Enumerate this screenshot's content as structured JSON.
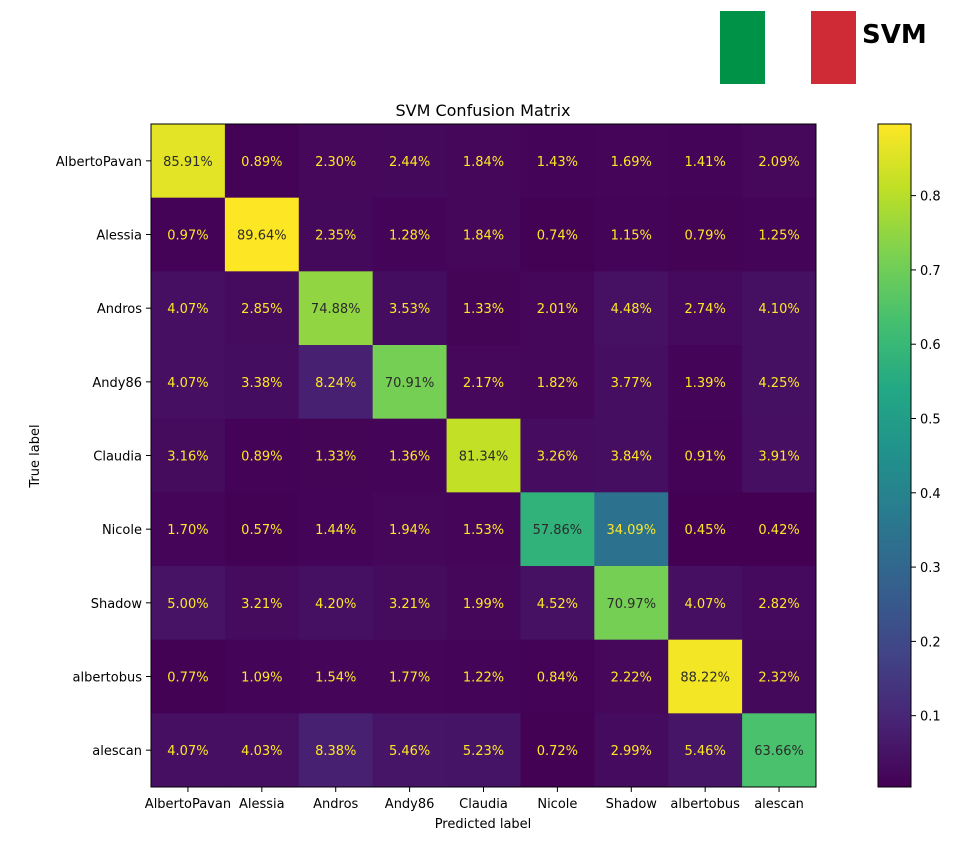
{
  "logo": {
    "text": "SVM",
    "colors": [
      "#009246",
      "#ffffff",
      "#ce2b37"
    ]
  },
  "chart_data": {
    "type": "heatmap",
    "title": "SVM Confusion Matrix",
    "xlabel": "Predicted label",
    "ylabel": "True label",
    "x_categories": [
      "AlbertoPavan",
      "Alessia",
      "Andros",
      "Andy86",
      "Claudia",
      "Nicole",
      "Shadow",
      "albertobus",
      "alescan"
    ],
    "y_categories": [
      "AlbertoPavan",
      "Alessia",
      "Andros",
      "Andy86",
      "Claudia",
      "Nicole",
      "Shadow",
      "albertobus",
      "alescan"
    ],
    "values": [
      [
        85.91,
        0.89,
        2.3,
        2.44,
        1.84,
        1.43,
        1.69,
        1.41,
        2.09
      ],
      [
        0.97,
        89.64,
        2.35,
        1.28,
        1.84,
        0.74,
        1.15,
        0.79,
        1.25
      ],
      [
        4.07,
        2.85,
        74.88,
        3.53,
        1.33,
        2.01,
        4.48,
        2.74,
        4.1
      ],
      [
        4.07,
        3.38,
        8.24,
        70.91,
        2.17,
        1.82,
        3.77,
        1.39,
        4.25
      ],
      [
        3.16,
        0.89,
        1.33,
        1.36,
        81.34,
        3.26,
        3.84,
        0.91,
        3.91
      ],
      [
        1.7,
        0.57,
        1.44,
        1.94,
        1.53,
        57.86,
        34.09,
        0.45,
        0.42
      ],
      [
        5.0,
        3.21,
        4.2,
        3.21,
        1.99,
        4.52,
        70.97,
        4.07,
        2.82
      ],
      [
        0.77,
        1.09,
        1.54,
        1.77,
        1.22,
        0.84,
        2.22,
        88.22,
        2.32
      ],
      [
        4.07,
        4.03,
        8.38,
        5.46,
        5.23,
        0.72,
        2.99,
        5.46,
        63.66
      ]
    ],
    "value_unit": "%",
    "colormap": "viridis",
    "colorbar": {
      "range": [
        0.004,
        0.8964
      ],
      "ticks": [
        0.1,
        0.2,
        0.3,
        0.4,
        0.5,
        0.6,
        0.7,
        0.8
      ],
      "tick_labels": [
        "0.1",
        "0.2",
        "0.3",
        "0.4",
        "0.5",
        "0.6",
        "0.7",
        "0.8"
      ]
    },
    "label_colors": {
      "light": "#fde725",
      "dark": "#2b2b2b"
    },
    "grid": false
  }
}
